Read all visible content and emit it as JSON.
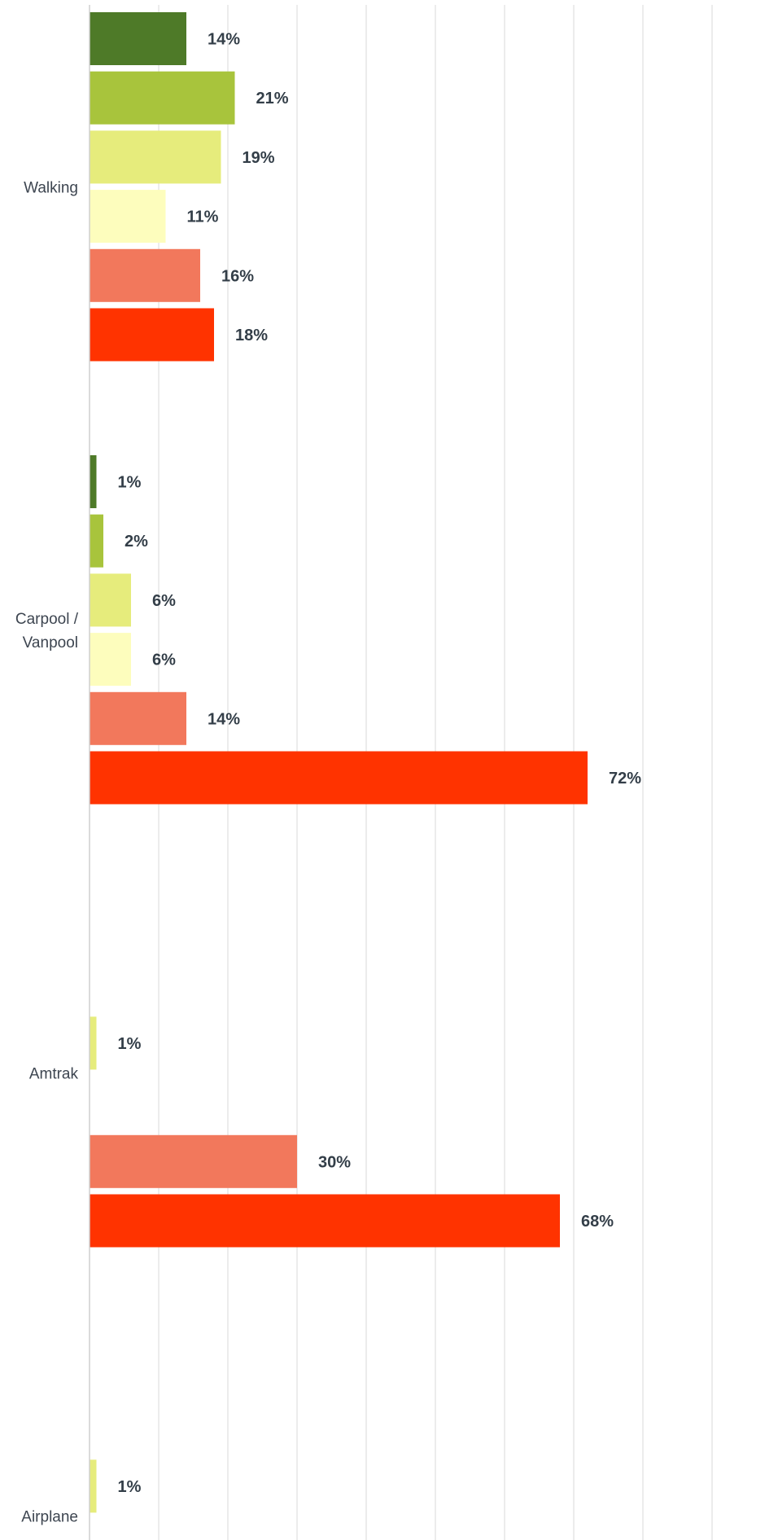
{
  "chart_data": {
    "type": "bar",
    "orientation": "horizontal",
    "xlim": [
      0,
      100
    ],
    "gridline_step": 10,
    "grid": true,
    "legend": "none",
    "colors": [
      "#4e7a28",
      "#a8c43c",
      "#e6ec7c",
      "#fdfdbd",
      "#f2785c",
      "#ff3300"
    ],
    "categories": [
      {
        "label_lines": [
          "Walking"
        ],
        "bars": [
          {
            "value": 14,
            "label": "14%"
          },
          {
            "value": 21,
            "label": "21%"
          },
          {
            "value": 19,
            "label": "19%"
          },
          {
            "value": 11,
            "label": "11%"
          },
          {
            "value": 16,
            "label": "16%"
          },
          {
            "value": 18,
            "label": "18%"
          }
        ]
      },
      {
        "label_lines": [
          "Carpool /",
          "Vanpool"
        ],
        "bars": [
          {
            "value": 1,
            "label": "1%"
          },
          {
            "value": 2,
            "label": "2%"
          },
          {
            "value": 6,
            "label": "6%"
          },
          {
            "value": 6,
            "label": "6%"
          },
          {
            "value": 14,
            "label": "14%"
          },
          {
            "value": 72,
            "label": "72%"
          }
        ]
      },
      {
        "label_lines": [
          "Amtrak"
        ],
        "bars": [
          {
            "value": 0,
            "label": ""
          },
          {
            "value": 0,
            "label": ""
          },
          {
            "value": 1,
            "label": "1%"
          },
          {
            "value": 0,
            "label": ""
          },
          {
            "value": 30,
            "label": "30%"
          },
          {
            "value": 68,
            "label": "68%"
          }
        ]
      },
      {
        "label_lines": [
          "Airplane"
        ],
        "bars": [
          {
            "value": 0,
            "label": ""
          },
          {
            "value": 0,
            "label": ""
          },
          {
            "value": 1,
            "label": "1%"
          },
          {
            "value": 0,
            "label": ""
          },
          {
            "value": 0,
            "label": ""
          },
          {
            "value": 0,
            "label": ""
          }
        ]
      }
    ]
  }
}
